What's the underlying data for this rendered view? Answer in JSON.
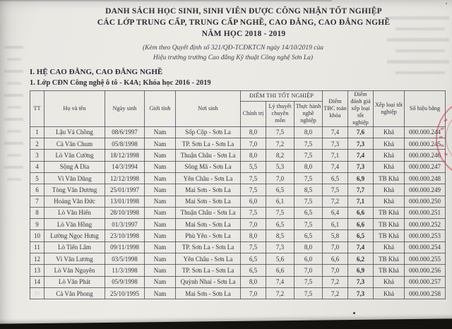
{
  "document": {
    "title_line1": "DANH SÁCH HỌC SINH, SINH VIÊN ĐƯỢC CÔNG NHẬN TỐT NGHIỆP",
    "title_line2": "CÁC LỚP TRUNG CẤP, TRUNG CẤP NGHỀ, CAO ĐẲNG, CAO ĐẲNG NGHỀ",
    "title_line3": "NĂM HỌC 2018 - 2019",
    "subtitle_line1": "(Kèm theo Quyết định số 321/QĐ-TCĐKTCN ngày 14/10/2019 của",
    "subtitle_line2": "Hiệu trưởng trường Cao đẳng Kỹ thuật Công nghệ Sơn La)",
    "section_heading": "I. HỆ CAO ĐẲNG, CAO ĐẲNG NGHỀ",
    "class_heading": "1. Lớp CĐN Công nghệ ô tô - K4A; Khóa học 2016 - 2019"
  },
  "table": {
    "group_header": "ĐIỂM THI TỐT NGHIỆP",
    "columns": {
      "tt": "TT",
      "name": "Họ và tên",
      "dob": "Ngày sinh",
      "gender": "Giới tính",
      "birthplace": "Nơi sinh",
      "politics": "Chính trị",
      "theory": "Lý thuyết chuyên môn",
      "practice": "Thực hành nghề nghiệp",
      "gpa": "Điểm TBC toàn khóa",
      "grad_score": "Điểm đánh giá xếp loại tốt nghiệp",
      "rank": "Xếp loại tốt nghiệp",
      "diploma": "Số hiệu bằng"
    },
    "rows": [
      [
        "1",
        "Lậu Vá Chồng",
        "08/6/1997",
        "Nam",
        "Sốp Cộp - Sơn La",
        "8,0",
        "7,5",
        "8,0",
        "7,4",
        "7,6",
        "Khá",
        "000.000.244"
      ],
      [
        "2",
        "Cà Văn Chum",
        "05/8/1998",
        "Nam",
        "TP. Sơn La - Sơn La",
        "7,0",
        "7,2",
        "7,5",
        "7,3",
        "7,3",
        "Khá",
        "000.000.245"
      ],
      [
        "3",
        "Lò Văn Cường",
        "18/12/1998",
        "Nam",
        "Thuận Châu - Sơn La",
        "8,0",
        "8,2",
        "7,5",
        "7,1",
        "7,4",
        "Khá",
        "000.000.246"
      ],
      [
        "4",
        "Sộng A Dia",
        "14/3/1994",
        "Nam",
        "Sông Mã - Sơn La",
        "5,5",
        "5,3",
        "8,0",
        "7,4",
        "7,3",
        "Khá",
        "000.000.247"
      ],
      [
        "5",
        "Vì Văn Dũng",
        "12/12/1998",
        "Nam",
        "Yên Châu - Sơn La",
        "7,5",
        "7,0",
        "7,5",
        "6,5",
        "6,9",
        "TB Khá",
        "000.000.248"
      ],
      [
        "6",
        "Tòng Văn Dương",
        "25/01/1997",
        "Nam",
        "Mai Sơn - Sơn La",
        "7,5",
        "6,5",
        "8,5",
        "7,5",
        "7,7",
        "Khá",
        "000.000.249"
      ],
      [
        "7",
        "Hoàng Văn Đức",
        "13/01/1998",
        "Nam",
        "Mai Sơn - Sơn La",
        "6,0",
        "6,1",
        "7,5",
        "7,2",
        "7,1",
        "Khá",
        "000.000.250"
      ],
      [
        "8",
        "Lò Văn Hiến",
        "28/10/1998",
        "Nam",
        "Thuận Châu - Sơn La",
        "7,5",
        "7,5",
        "6,5",
        "6,4",
        "6,6",
        "TB Khá",
        "000.000.251"
      ],
      [
        "9",
        "Lò Văn Hồng",
        "01/3/1997",
        "Nam",
        "Mai Sơn - Sơn La",
        "7,0",
        "6,5",
        "7,5",
        "6,1",
        "6,6",
        "TB Khá",
        "000.000.252"
      ],
      [
        "10",
        "Lường Ngọc Hưng",
        "23/10/1998",
        "Nam",
        "Phù Yên - Sơn La",
        "8,0",
        "8,5",
        "6,5",
        "5,8",
        "6,5",
        "TB Khá",
        "000.000.253"
      ],
      [
        "11",
        "Lò Tiến Lâm",
        "09/11/1998",
        "Nam",
        "TP. Sơn La - Sơn La",
        "7,5",
        "7,3",
        "8,0",
        "7,0",
        "7,4",
        "Khá",
        "000.000.254"
      ],
      [
        "12",
        "Vì Văn Lương",
        "03/5/1998",
        "Nam",
        "Yên Châu - Sơn La",
        "6,5",
        "5,6",
        "6,0",
        "6,6",
        "6,2",
        "TB Khá",
        "000.000.255"
      ],
      [
        "13",
        "Lò Văn Nguyên",
        "11/3/1998",
        "Nam",
        "TP. Sơn La - Sơn La",
        "6,5",
        "6,6",
        "7,0",
        "7,0",
        "6,9",
        "TB Khá",
        "000.000.256"
      ],
      [
        "14",
        "Lò Văn Phát",
        "05/9/1998",
        "Nam",
        "Quỳnh Nhai - Sơn La",
        "8,0",
        "7,4",
        "7,5",
        "7,2",
        "7,3",
        "Khá",
        "000.000.257"
      ],
      [
        "15",
        "Cà Văn Phong",
        "25/10/1995",
        "Nam",
        "Mai Sơn - Sơn La",
        "7,0",
        "7,2",
        "7,5",
        "7,2",
        "7,3",
        "Khá",
        "000.000.258"
      ]
    ]
  },
  "stamp": {
    "color": "#c43e4a"
  }
}
